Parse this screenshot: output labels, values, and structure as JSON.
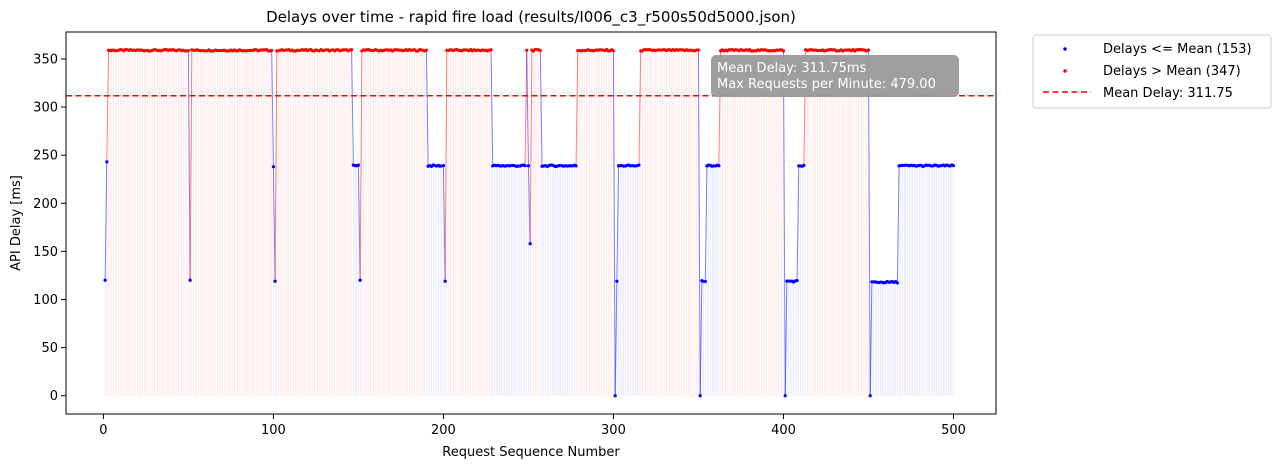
{
  "chart_data": {
    "type": "scatter",
    "title": "Delays over time - rapid fire load (results/I006_c3_r500s50d5000.json)",
    "xlabel": "Request Sequence Number",
    "ylabel": "API Delay [ms]",
    "xlim": [
      -22,
      525
    ],
    "ylim": [
      -19,
      378
    ],
    "xticks": [
      0,
      100,
      200,
      300,
      400,
      500
    ],
    "yticks": [
      0,
      50,
      100,
      150,
      200,
      250,
      300,
      350
    ],
    "mean_delay": 311.75,
    "legend": {
      "placement": "outside-top-right",
      "entries": [
        {
          "label": "Delays <= Mean (153)",
          "color": "#0000ff",
          "kind": "dot"
        },
        {
          "label": "Delays > Mean (347)",
          "color": "#ff0000",
          "kind": "dot"
        },
        {
          "label": "Mean Delay: 311.75",
          "color": "#ff0000",
          "kind": "dashed-line"
        }
      ]
    },
    "annotation": {
      "line1": "Mean Delay: 311.75ms",
      "line2": "Max Requests per Minute:  479.00"
    },
    "colors": {
      "below_mean": "#0000ff",
      "above_mean": "#ff0000",
      "mean_line": "#ff0000",
      "annotation_box": "#999999"
    },
    "segments": [
      {
        "from": 1,
        "to": 1,
        "value": 120
      },
      {
        "from": 2,
        "to": 2,
        "value": 243
      },
      {
        "from": 3,
        "to": 50,
        "value": 359
      },
      {
        "from": 51,
        "to": 51,
        "value": 120
      },
      {
        "from": 52,
        "to": 99,
        "value": 359
      },
      {
        "from": 100,
        "to": 100,
        "value": 238
      },
      {
        "from": 101,
        "to": 101,
        "value": 119
      },
      {
        "from": 102,
        "to": 146,
        "value": 359
      },
      {
        "from": 147,
        "to": 150,
        "value": 239
      },
      {
        "from": 151,
        "to": 151,
        "value": 120
      },
      {
        "from": 152,
        "to": 190,
        "value": 359
      },
      {
        "from": 191,
        "to": 200,
        "value": 239
      },
      {
        "from": 201,
        "to": 201,
        "value": 119
      },
      {
        "from": 202,
        "to": 228,
        "value": 359
      },
      {
        "from": 229,
        "to": 248,
        "value": 239
      },
      {
        "from": 249,
        "to": 249,
        "value": 359
      },
      {
        "from": 250,
        "to": 250,
        "value": 239
      },
      {
        "from": 251,
        "to": 251,
        "value": 158
      },
      {
        "from": 252,
        "to": 257,
        "value": 359
      },
      {
        "from": 258,
        "to": 278,
        "value": 239
      },
      {
        "from": 279,
        "to": 300,
        "value": 359
      },
      {
        "from": 301,
        "to": 301,
        "value": 0
      },
      {
        "from": 302,
        "to": 302,
        "value": 119
      },
      {
        "from": 303,
        "to": 315,
        "value": 239
      },
      {
        "from": 316,
        "to": 350,
        "value": 359
      },
      {
        "from": 351,
        "to": 351,
        "value": 0
      },
      {
        "from": 352,
        "to": 354,
        "value": 119
      },
      {
        "from": 355,
        "to": 362,
        "value": 239
      },
      {
        "from": 363,
        "to": 400,
        "value": 359
      },
      {
        "from": 401,
        "to": 401,
        "value": 0
      },
      {
        "from": 402,
        "to": 408,
        "value": 119
      },
      {
        "from": 409,
        "to": 412,
        "value": 239
      },
      {
        "from": 413,
        "to": 450,
        "value": 359
      },
      {
        "from": 451,
        "to": 451,
        "value": 0
      },
      {
        "from": 452,
        "to": 467,
        "value": 118
      },
      {
        "from": 468,
        "to": 500,
        "value": 239
      }
    ]
  }
}
